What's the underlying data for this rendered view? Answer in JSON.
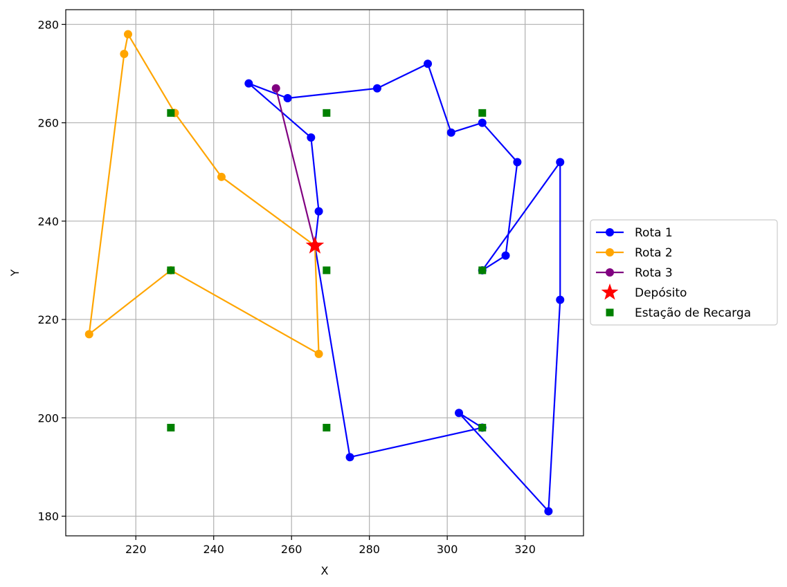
{
  "chart_data": {
    "type": "line",
    "title": "",
    "xlabel": "X",
    "ylabel": "Y",
    "xlim": [
      202,
      335
    ],
    "ylim": [
      176,
      283
    ],
    "xticks": [
      220,
      240,
      260,
      280,
      300,
      320
    ],
    "yticks": [
      180,
      200,
      220,
      240,
      260,
      280
    ],
    "grid": true,
    "legend_position": "right-outside",
    "series": [
      {
        "name": "Rota 1",
        "color": "#0000ff",
        "marker": "circle",
        "points": [
          [
            266,
            235
          ],
          [
            267,
            242
          ],
          [
            265,
            257
          ],
          [
            249,
            268
          ],
          [
            259,
            265
          ],
          [
            282,
            267
          ],
          [
            295,
            272
          ],
          [
            301,
            258
          ],
          [
            309,
            260
          ],
          [
            318,
            252
          ],
          [
            315,
            233
          ],
          [
            309,
            230
          ],
          [
            329,
            252
          ],
          [
            329,
            224
          ],
          [
            326,
            181
          ],
          [
            303,
            201
          ],
          [
            309,
            198
          ],
          [
            275,
            192
          ],
          [
            266,
            235
          ]
        ]
      },
      {
        "name": "Rota 2",
        "color": "#ffa500",
        "marker": "circle",
        "points": [
          [
            266,
            235
          ],
          [
            242,
            249
          ],
          [
            230,
            262
          ],
          [
            218,
            278
          ],
          [
            217,
            274
          ],
          [
            208,
            217
          ],
          [
            229,
            230
          ],
          [
            267,
            213
          ],
          [
            266,
            235
          ]
        ]
      },
      {
        "name": "Rota 3",
        "color": "#800080",
        "marker": "circle",
        "points": [
          [
            266,
            235
          ],
          [
            256,
            267
          ],
          [
            266,
            235
          ]
        ]
      }
    ],
    "depot": {
      "name": "Depósito",
      "color": "#ff0000",
      "marker": "star",
      "point": [
        266,
        235
      ]
    },
    "stations": {
      "name": "Estação de Recarga",
      "color": "#008000",
      "marker": "square",
      "points": [
        [
          229,
          262
        ],
        [
          269,
          262
        ],
        [
          309,
          262
        ],
        [
          229,
          230
        ],
        [
          269,
          230
        ],
        [
          309,
          230
        ],
        [
          229,
          198
        ],
        [
          269,
          198
        ],
        [
          309,
          198
        ]
      ]
    }
  }
}
